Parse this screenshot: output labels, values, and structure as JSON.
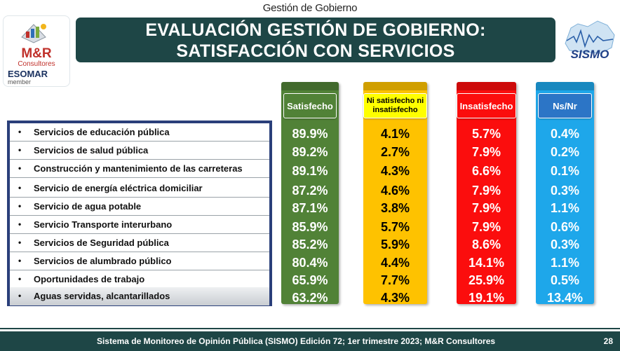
{
  "header": {
    "section": "Gestión de Gobierno",
    "title_line1": "EVALUACIÓN GESTIÓN DE GOBIERNO:",
    "title_line2": "SATISFACCIÓN CON SERVICIOS"
  },
  "logos": {
    "left_name": "M&R",
    "left_sub": "Consultores",
    "left_assoc": "ESOMAR",
    "left_member": "member",
    "right_name": "SISMO"
  },
  "columns": {
    "sat": "Satisfecho",
    "ni": "Ni satisfecho ni insatisfecho",
    "ins": "Insatisfecho",
    "ns": "Ns/Nr"
  },
  "colors": {
    "sat": "#518237",
    "ni": "#fec200",
    "ins": "#fb0d0d",
    "ns": "#1ea7ea",
    "title_bg": "#1e4646"
  },
  "chart_data": {
    "type": "table",
    "unit": "%",
    "categories": [
      "Servicios de educación pública",
      "Servicios de salud pública",
      "Construcción y mantenimiento de las carreteras",
      "Servicio de energía eléctrica domiciliar",
      "Servicio de agua potable",
      "Servicio Transporte interurbano",
      "Servicios de Seguridad pública",
      "Servicios de alumbrado público",
      "Oportunidades de trabajo",
      "Aguas servidas, alcantarillados"
    ],
    "series": [
      {
        "name": "Satisfecho",
        "values": [
          89.9,
          89.2,
          89.1,
          87.2,
          87.1,
          85.9,
          85.2,
          80.4,
          65.9,
          63.2
        ]
      },
      {
        "name": "Ni satisfecho ni insatisfecho",
        "values": [
          4.1,
          2.7,
          4.3,
          4.6,
          3.8,
          5.7,
          5.9,
          4.4,
          7.7,
          4.3
        ]
      },
      {
        "name": "Insatisfecho",
        "values": [
          5.7,
          7.9,
          6.6,
          7.9,
          7.9,
          7.9,
          8.6,
          14.1,
          25.9,
          19.1
        ]
      },
      {
        "name": "Ns/Nr",
        "values": [
          0.4,
          0.2,
          0.1,
          0.3,
          1.1,
          0.6,
          0.3,
          1.1,
          0.5,
          13.4
        ]
      }
    ]
  },
  "footer": {
    "source": "Sistema de Monitoreo de Opinión Pública (SISMO) Edición 72;  1er trimestre 2023; M&R Consultores",
    "page": "28"
  }
}
